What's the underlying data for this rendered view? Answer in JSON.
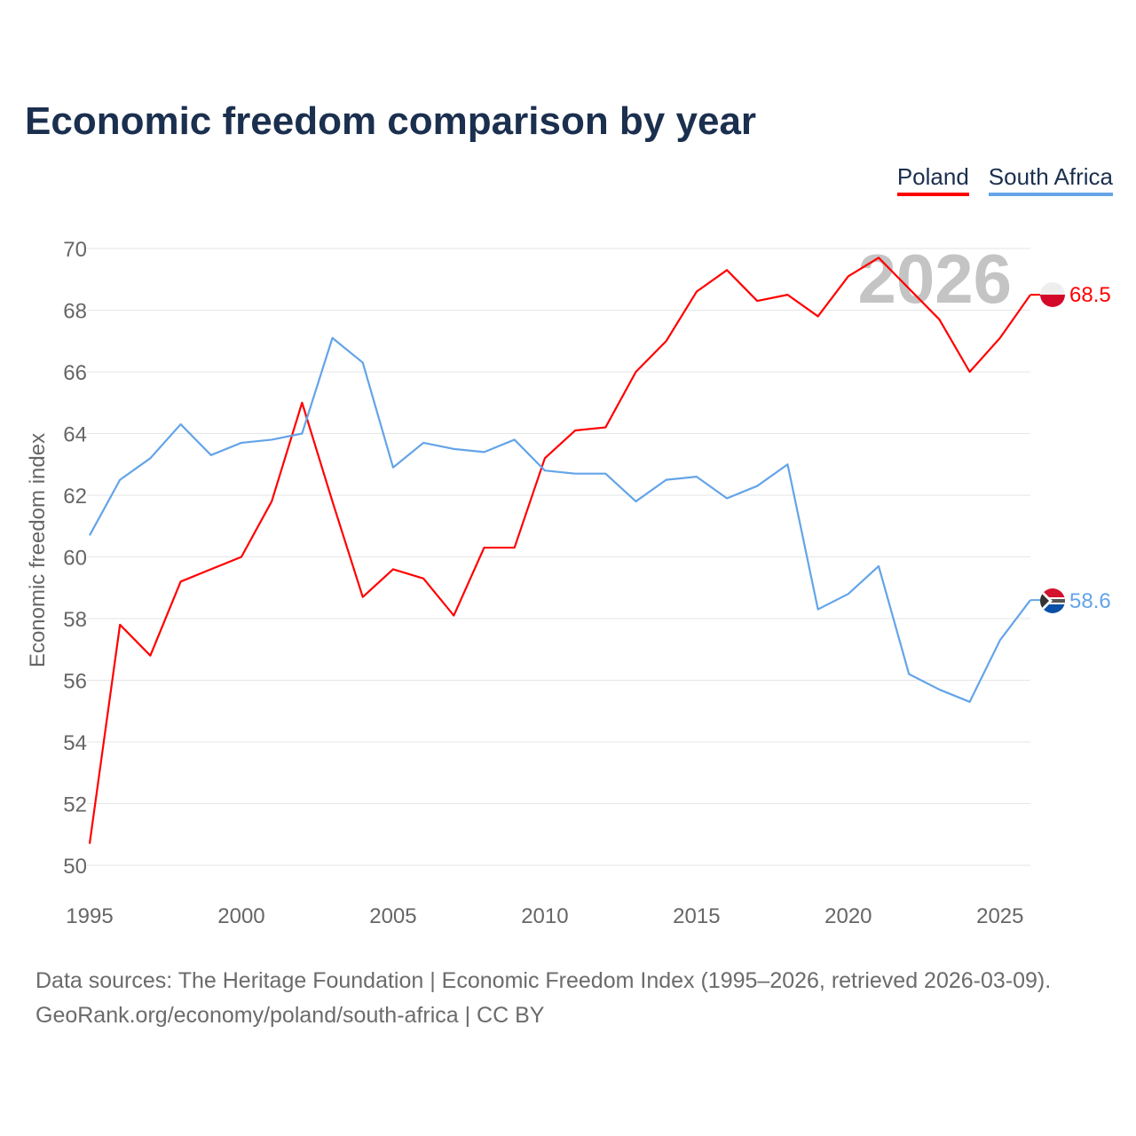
{
  "title": "Economic freedom comparison by year",
  "watermark_year": "2026",
  "footer": {
    "line1": "Data sources: The Heritage Foundation | Economic Freedom Index (1995–2026, retrieved 2026-03-09).",
    "line2": "GeoRank.org/economy/poland/south-africa | CC BY"
  },
  "chart_data": {
    "type": "line",
    "title": "Economic freedom comparison by year",
    "xlabel": "",
    "ylabel": "Economic freedom index",
    "xlim": [
      1995,
      2026
    ],
    "ylim": [
      50,
      70
    ],
    "x_ticks": [
      1995,
      2000,
      2005,
      2010,
      2015,
      2020,
      2025
    ],
    "y_ticks": [
      50,
      52,
      54,
      56,
      58,
      60,
      62,
      64,
      66,
      68,
      70
    ],
    "grid": true,
    "legend_position": "top-right",
    "x": [
      1995,
      1996,
      1997,
      1998,
      1999,
      2000,
      2001,
      2002,
      2003,
      2004,
      2005,
      2006,
      2007,
      2008,
      2009,
      2010,
      2011,
      2012,
      2013,
      2014,
      2015,
      2016,
      2017,
      2018,
      2019,
      2020,
      2021,
      2022,
      2023,
      2024,
      2025,
      2026
    ],
    "series": [
      {
        "name": "Poland",
        "color": "#ff0000",
        "end_label": "68.5",
        "flag": "poland-flag",
        "values": [
          50.7,
          57.8,
          56.8,
          59.2,
          59.6,
          60.0,
          61.8,
          65.0,
          61.8,
          58.7,
          59.6,
          59.3,
          58.1,
          60.3,
          60.3,
          63.2,
          64.1,
          64.2,
          66.0,
          67.0,
          68.6,
          69.3,
          68.3,
          68.5,
          67.8,
          69.1,
          69.7,
          68.7,
          67.7,
          66.0,
          67.1,
          68.5
        ]
      },
      {
        "name": "South Africa",
        "color": "#63a4e8",
        "end_label": "58.6",
        "flag": "south-africa-flag",
        "values": [
          60.7,
          62.5,
          63.2,
          64.3,
          63.3,
          63.7,
          63.8,
          64.0,
          67.1,
          66.3,
          62.9,
          63.7,
          63.5,
          63.4,
          63.8,
          62.8,
          62.7,
          62.7,
          61.8,
          62.5,
          62.6,
          61.9,
          62.3,
          63.0,
          58.3,
          58.8,
          59.7,
          56.2,
          55.7,
          55.3,
          57.3,
          58.6
        ]
      }
    ]
  }
}
